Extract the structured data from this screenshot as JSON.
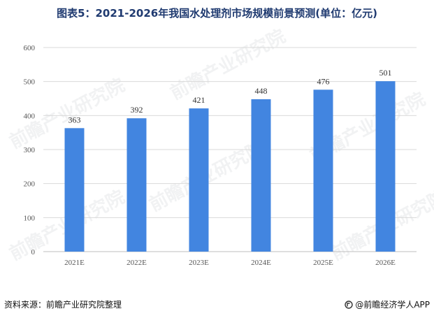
{
  "title": "图表5：2021-2026年我国水处理剂市场规模前景预测(单位：亿元)",
  "source": "资料来源：前瞻产业研究院整理",
  "brand": "@前瞻经济学人APP",
  "watermark": "前瞻产业研究院",
  "chart_data": {
    "type": "bar",
    "categories": [
      "2021E",
      "2022E",
      "2023E",
      "2024E",
      "2025E",
      "2026E"
    ],
    "values": [
      363,
      392,
      421,
      448,
      476,
      501
    ],
    "ylim": [
      0,
      600
    ],
    "yticks": [
      0,
      100,
      200,
      300,
      400,
      500,
      600
    ],
    "grid": true,
    "bar_color": "#4285e0",
    "xlabel": "",
    "ylabel": ""
  }
}
